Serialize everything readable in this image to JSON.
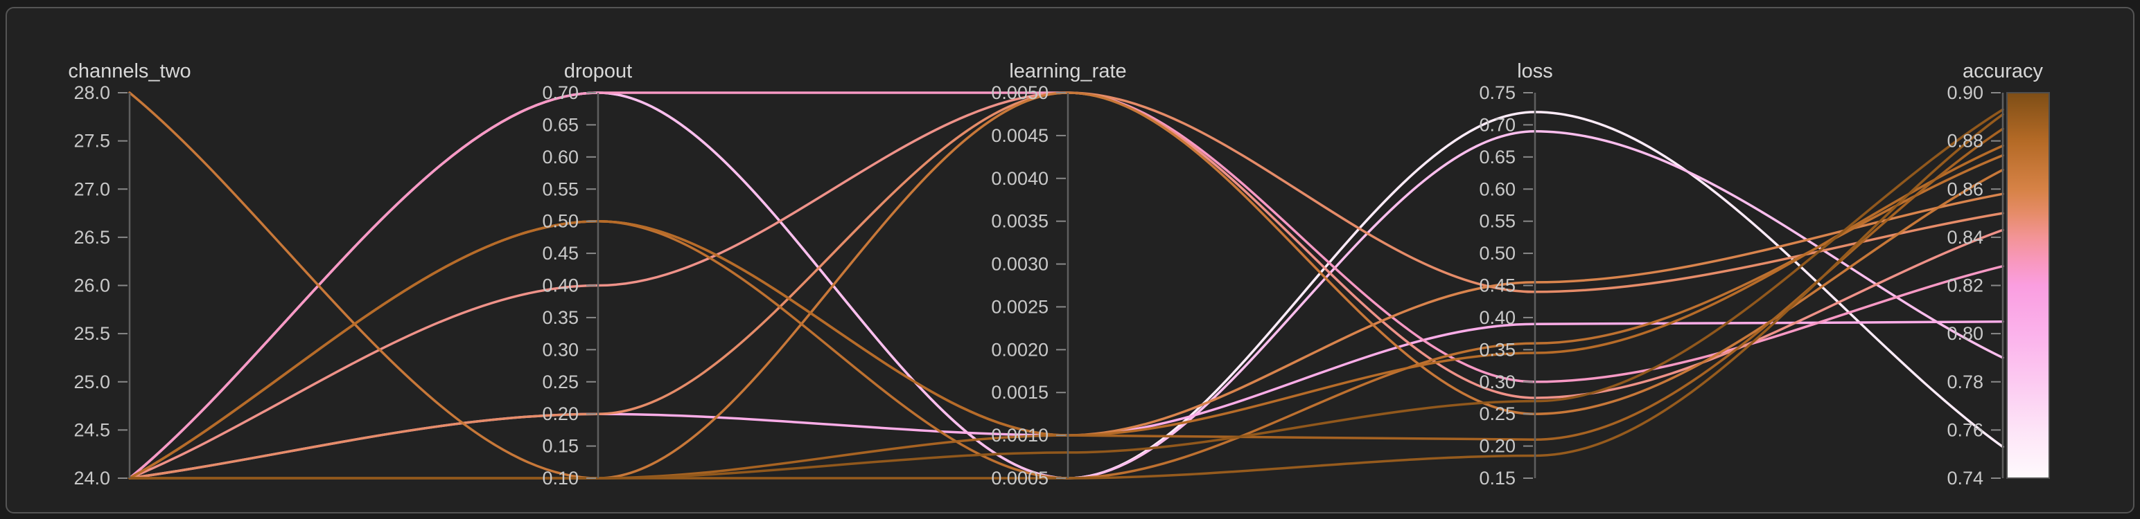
{
  "panel": {
    "outer_background": "#1b1b1b",
    "background": "#222222",
    "border_color": "#555555"
  },
  "chart_data": {
    "type": "parallel-coordinates",
    "legend_position": "right-colorbar",
    "grid": false,
    "axes": [
      {
        "key": "channels_two",
        "label": "channels_two",
        "min": 24.0,
        "max": 28.0,
        "tick_values": [
          24.0,
          24.5,
          25.0,
          25.5,
          26.0,
          26.5,
          27.0,
          27.5,
          28.0
        ],
        "tick_labels": [
          "24.0",
          "24.5",
          "25.0",
          "25.5",
          "26.0",
          "26.5",
          "27.0",
          "27.5",
          "28.0"
        ]
      },
      {
        "key": "dropout",
        "label": "dropout",
        "min": 0.1,
        "max": 0.7,
        "tick_values": [
          0.1,
          0.15,
          0.2,
          0.25,
          0.3,
          0.35,
          0.4,
          0.45,
          0.5,
          0.55,
          0.6,
          0.65,
          0.7
        ],
        "tick_labels": [
          "0.10",
          "0.15",
          "0.20",
          "0.25",
          "0.30",
          "0.35",
          "0.40",
          "0.45",
          "0.50",
          "0.55",
          "0.60",
          "0.65",
          "0.70"
        ]
      },
      {
        "key": "learning_rate",
        "label": "learning_rate",
        "min": 0.0005,
        "max": 0.005,
        "tick_values": [
          0.0005,
          0.001,
          0.0015,
          0.002,
          0.0025,
          0.003,
          0.0035,
          0.004,
          0.0045,
          0.005
        ],
        "tick_labels": [
          "0.0005",
          "0.0010",
          "0.0015",
          "0.0020",
          "0.0025",
          "0.0030",
          "0.0035",
          "0.0040",
          "0.0045",
          "0.0050"
        ]
      },
      {
        "key": "loss",
        "label": "loss",
        "min": 0.15,
        "max": 0.75,
        "tick_values": [
          0.15,
          0.2,
          0.25,
          0.3,
          0.35,
          0.4,
          0.45,
          0.5,
          0.55,
          0.6,
          0.65,
          0.7,
          0.75
        ],
        "tick_labels": [
          "0.15",
          "0.20",
          "0.25",
          "0.30",
          "0.35",
          "0.40",
          "0.45",
          "0.50",
          "0.55",
          "0.60",
          "0.65",
          "0.70",
          "0.75"
        ]
      },
      {
        "key": "accuracy",
        "label": "accuracy",
        "min": 0.74,
        "max": 0.9,
        "tick_values": [
          0.74,
          0.76,
          0.78,
          0.8,
          0.82,
          0.84,
          0.86,
          0.88,
          0.9
        ],
        "tick_labels": [
          "0.74",
          "0.76",
          "0.78",
          "0.80",
          "0.82",
          "0.84",
          "0.86",
          "0.88",
          "0.90"
        ]
      }
    ],
    "color": {
      "by": "accuracy",
      "min": 0.74,
      "max": 0.9,
      "stops": [
        {
          "value": 0.74,
          "color": "#fffafd"
        },
        {
          "value": 0.76,
          "color": "#fde4f7"
        },
        {
          "value": 0.78,
          "color": "#fccaf1"
        },
        {
          "value": 0.8,
          "color": "#fbb2eb"
        },
        {
          "value": 0.82,
          "color": "#fa9ee0"
        },
        {
          "value": 0.83,
          "color": "#f898be"
        },
        {
          "value": 0.84,
          "color": "#f39496"
        },
        {
          "value": 0.85,
          "color": "#e68c69"
        },
        {
          "value": 0.86,
          "color": "#d68246"
        },
        {
          "value": 0.88,
          "color": "#b46a26"
        },
        {
          "value": 0.9,
          "color": "#7e4e16"
        }
      ]
    },
    "runs": [
      {
        "channels_two": 24,
        "dropout": 0.7,
        "learning_rate": 0.0005,
        "loss": 0.72,
        "accuracy": 0.753
      },
      {
        "channels_two": 24,
        "dropout": 0.7,
        "learning_rate": 0.0005,
        "loss": 0.69,
        "accuracy": 0.79
      },
      {
        "channels_two": 24,
        "dropout": 0.2,
        "learning_rate": 0.001,
        "loss": 0.39,
        "accuracy": 0.805
      },
      {
        "channels_two": 24,
        "dropout": 0.7,
        "learning_rate": 0.005,
        "loss": 0.3,
        "accuracy": 0.828
      },
      {
        "channels_two": 24,
        "dropout": 0.4,
        "learning_rate": 0.005,
        "loss": 0.275,
        "accuracy": 0.843
      },
      {
        "channels_two": 24,
        "dropout": 0.2,
        "learning_rate": 0.005,
        "loss": 0.44,
        "accuracy": 0.85
      },
      {
        "channels_two": 24,
        "dropout": 0.5,
        "learning_rate": 0.001,
        "loss": 0.455,
        "accuracy": 0.858
      },
      {
        "channels_two": 28,
        "dropout": 0.1,
        "learning_rate": 0.005,
        "loss": 0.25,
        "accuracy": 0.868
      },
      {
        "channels_two": 24,
        "dropout": 0.5,
        "learning_rate": 0.0005,
        "loss": 0.36,
        "accuracy": 0.874
      },
      {
        "channels_two": 24,
        "dropout": 0.5,
        "learning_rate": 0.001,
        "loss": 0.345,
        "accuracy": 0.878
      },
      {
        "channels_two": 24,
        "dropout": 0.1,
        "learning_rate": 0.001,
        "loss": 0.21,
        "accuracy": 0.885
      },
      {
        "channels_two": 24,
        "dropout": 0.1,
        "learning_rate": 0.0005,
        "loss": 0.185,
        "accuracy": 0.891
      },
      {
        "channels_two": 24,
        "dropout": 0.1,
        "learning_rate": 0.0008,
        "loss": 0.27,
        "accuracy": 0.893
      }
    ]
  }
}
